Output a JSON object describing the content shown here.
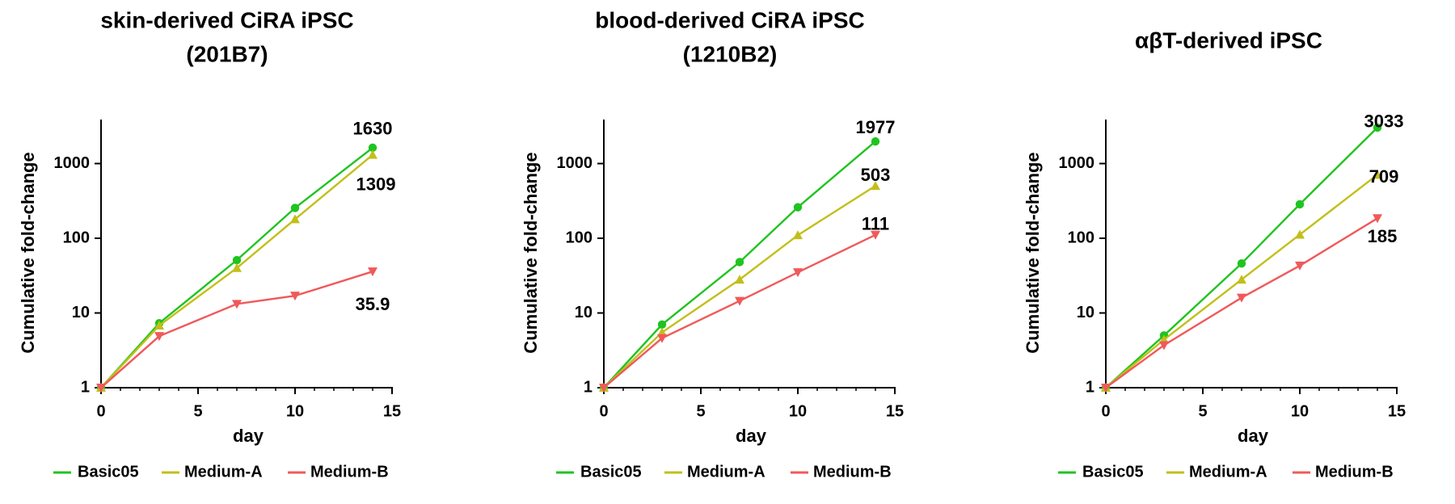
{
  "colors": {
    "Basic05": "#1fc41f",
    "Medium-A": "#c2bf1a",
    "Medium-B": "#f0595a",
    "axis": "#000000"
  },
  "chart_data": [
    {
      "type": "line",
      "title_lines": [
        "skin-derived CiRA iPSC",
        "(201B7)"
      ],
      "xlabel": "day",
      "ylabel": "Cumulative fold-change",
      "x_ticks": [
        "0",
        "5",
        "10",
        "15"
      ],
      "y_ticks": [
        "1",
        "10",
        "100",
        "1000"
      ],
      "xlim": [
        0,
        15
      ],
      "ylim": [
        1,
        4500
      ],
      "y_scale": "log",
      "x": [
        0,
        3,
        7,
        10,
        14
      ],
      "series": [
        {
          "name": "Basic05",
          "marker": "circle",
          "values": [
            1,
            7.3,
            51,
            255,
            1630
          ],
          "end_label": "1630"
        },
        {
          "name": "Medium-A",
          "marker": "triangle-up",
          "values": [
            1,
            6.8,
            40,
            180,
            1309
          ],
          "end_label": "1309"
        },
        {
          "name": "Medium-B",
          "marker": "triangle-down",
          "values": [
            1,
            4.9,
            13.2,
            17,
            35.9
          ],
          "end_label": "35.9"
        }
      ],
      "legend_position": "bottom"
    },
    {
      "type": "line",
      "title_lines": [
        "blood-derived CiRA iPSC",
        "(1210B2)"
      ],
      "xlabel": "day",
      "ylabel": "Cumulative fold-change",
      "x_ticks": [
        "0",
        "5",
        "10",
        "15"
      ],
      "y_ticks": [
        "1",
        "10",
        "100",
        "1000"
      ],
      "xlim": [
        0,
        15
      ],
      "ylim": [
        1,
        4500
      ],
      "y_scale": "log",
      "x": [
        0,
        3,
        7,
        10,
        14
      ],
      "series": [
        {
          "name": "Basic05",
          "marker": "circle",
          "values": [
            1,
            7,
            48,
            260,
            1977
          ],
          "end_label": "1977"
        },
        {
          "name": "Medium-A",
          "marker": "triangle-up",
          "values": [
            1,
            5.5,
            28,
            110,
            503
          ],
          "end_label": "503"
        },
        {
          "name": "Medium-B",
          "marker": "triangle-down",
          "values": [
            1,
            4.6,
            14.5,
            35,
            111
          ],
          "end_label": "111"
        }
      ],
      "legend_position": "bottom"
    },
    {
      "type": "line",
      "title_lines": [
        "αβT-derived iPSC"
      ],
      "xlabel": "day",
      "ylabel": "Cumulative fold-change",
      "x_ticks": [
        "0",
        "5",
        "10",
        "15"
      ],
      "y_ticks": [
        "1",
        "10",
        "100",
        "1000"
      ],
      "xlim": [
        0,
        15
      ],
      "ylim": [
        1,
        4500
      ],
      "y_scale": "log",
      "x": [
        0,
        3,
        7,
        10,
        14
      ],
      "series": [
        {
          "name": "Basic05",
          "marker": "circle",
          "values": [
            1,
            5,
            46,
            285,
            3033
          ],
          "end_label": "3033"
        },
        {
          "name": "Medium-A",
          "marker": "triangle-up",
          "values": [
            1,
            4.4,
            28,
            112,
            709
          ],
          "end_label": "709"
        },
        {
          "name": "Medium-B",
          "marker": "triangle-down",
          "values": [
            1,
            3.7,
            16,
            43,
            185
          ],
          "end_label": "185"
        }
      ],
      "legend_position": "bottom"
    }
  ]
}
